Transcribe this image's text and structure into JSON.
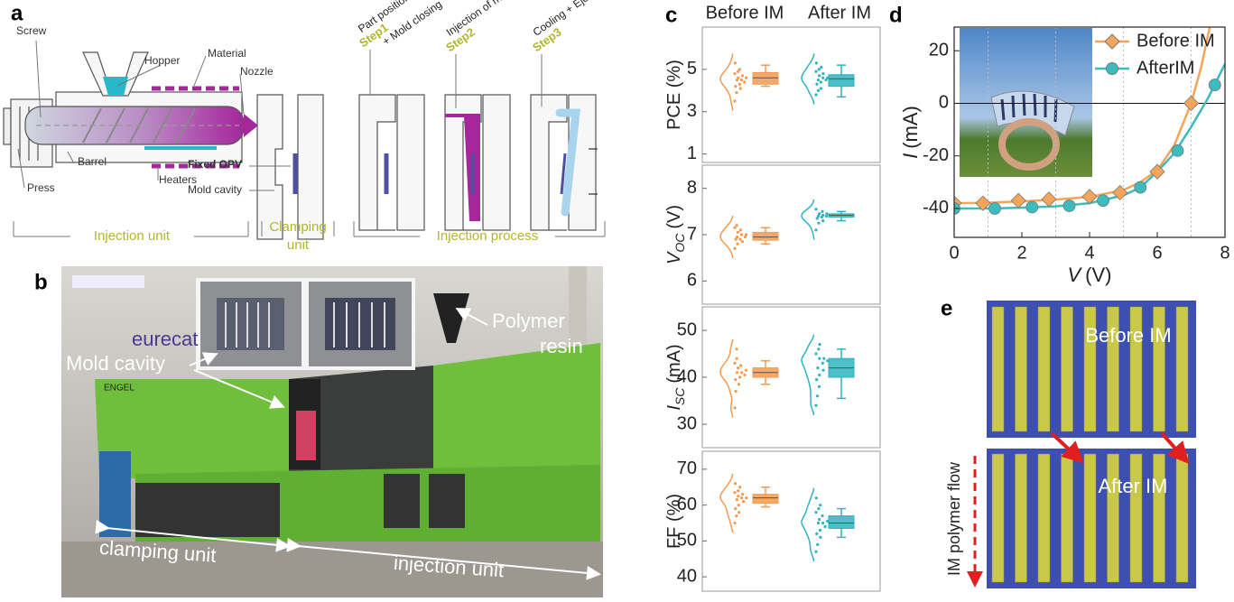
{
  "panel_labels": [
    "a",
    "b",
    "c",
    "d",
    "e"
  ],
  "panel_a": {
    "labels": {
      "screw": "Screw",
      "hopper": "Hopper",
      "material": "Material",
      "nozzle": "Nozzle",
      "press": "Press",
      "barrel": "Barrel",
      "heaters": "Heaters",
      "fixed_opv": "Fixed OPV",
      "mold_cavity": "Mold cavity"
    },
    "steps": [
      {
        "step": "Step1",
        "text": [
          "Part positioning",
          "+ Mold closing"
        ]
      },
      {
        "step": "Step2",
        "text": [
          "Injection of material"
        ]
      },
      {
        "step": "Step3",
        "text": [
          "Cooling + Ejection"
        ]
      }
    ],
    "sections": {
      "injection_unit": "Injection unit",
      "clamping_unit": [
        "Clamping",
        "unit"
      ],
      "injection_process": "Injection process"
    }
  },
  "panel_b": {
    "brand": "eurecat",
    "machine": "ENGEL",
    "polymer_resin": [
      "Polymer",
      "resin"
    ],
    "mold_cavity": "Mold cavity",
    "clamping_unit": "clamping unit",
    "injection_unit": "injection unit"
  },
  "panel_c": {
    "categories": [
      "Before IM",
      "After IM"
    ],
    "colors": [
      "#f39a4f",
      "#2fb3bf"
    ]
  },
  "panel_e": {
    "before": "Before IM",
    "after": "After IM",
    "flow": "IM polymer flow"
  },
  "chart_data": [
    {
      "type": "box",
      "ylabel": {
        "text": "PCE (%)"
      },
      "ylim": [
        0.6,
        7
      ],
      "yticks": [
        1,
        3,
        5
      ],
      "boxes": [
        {
          "whisker_low": 4.2,
          "q1": 4.3,
          "median": 4.6,
          "q3": 4.85,
          "whisker_high": 5.2,
          "points": [
            3.5,
            3.9,
            4.1,
            4.2,
            4.3,
            4.4,
            4.5,
            4.5,
            4.6,
            4.6,
            4.7,
            4.8,
            4.9,
            5.0,
            5.3
          ]
        },
        {
          "whisker_low": 3.7,
          "q1": 4.2,
          "median": 4.55,
          "q3": 4.75,
          "whisker_high": 5.2,
          "points": [
            3.8,
            4.0,
            4.1,
            4.3,
            4.4,
            4.5,
            4.5,
            4.6,
            4.6,
            4.7,
            4.8,
            4.9,
            5.0,
            5.1,
            5.3
          ]
        }
      ]
    },
    {
      "type": "box",
      "ylabel": {
        "symbol": "V",
        "sub": "OC",
        "unit": "(V)"
      },
      "ylim": [
        5.5,
        8.5
      ],
      "yticks": [
        6,
        7,
        8
      ],
      "boxes": [
        {
          "whisker_low": 6.8,
          "q1": 6.88,
          "median": 6.95,
          "q3": 7.05,
          "whisker_high": 7.15,
          "points": [
            6.7,
            6.8,
            6.85,
            6.9,
            6.9,
            6.95,
            6.95,
            7.0,
            7.0,
            7.05,
            7.1,
            7.15,
            7.2
          ]
        },
        {
          "whisker_low": 7.3,
          "q1": 7.38,
          "median": 7.42,
          "q3": 7.45,
          "whisker_high": 7.5,
          "points": [
            7.1,
            7.25,
            7.3,
            7.35,
            7.38,
            7.4,
            7.4,
            7.42,
            7.45,
            7.45,
            7.5,
            7.55
          ]
        }
      ]
    },
    {
      "type": "box",
      "ylabel": {
        "symbol": "I",
        "sub": "SC",
        "unit": "(mA)"
      },
      "ylim": [
        25,
        55
      ],
      "yticks": [
        30,
        40,
        50
      ],
      "boxes": [
        {
          "whisker_low": 38.5,
          "q1": 40,
          "median": 41,
          "q3": 42,
          "whisker_high": 43.5,
          "points": [
            33.5,
            37,
            38.5,
            39.5,
            40,
            40.5,
            41,
            41,
            41.5,
            42,
            42.5,
            43,
            44,
            46
          ]
        },
        {
          "whisker_low": 35.5,
          "q1": 40,
          "median": 42,
          "q3": 44,
          "whisker_high": 46,
          "points": [
            34,
            36,
            38,
            39.5,
            40.5,
            41.5,
            42,
            43,
            43.5,
            44,
            44,
            45,
            46,
            47
          ]
        }
      ]
    },
    {
      "type": "box",
      "ylabel": {
        "text": "FF (%)"
      },
      "ylim": [
        36,
        75
      ],
      "yticks": [
        40,
        50,
        60,
        70
      ],
      "boxes": [
        {
          "whisker_low": 59.5,
          "q1": 60.5,
          "median": 62,
          "q3": 63,
          "whisker_high": 65,
          "points": [
            55,
            57,
            58,
            59,
            60,
            61,
            61.5,
            62,
            62,
            62.5,
            63,
            63.5,
            64,
            65,
            66
          ]
        },
        {
          "whisker_low": 51,
          "q1": 53.5,
          "median": 55,
          "q3": 57,
          "whisker_high": 59,
          "points": [
            47,
            49,
            51,
            52,
            53,
            54,
            55,
            55,
            55.5,
            56,
            57,
            58,
            59,
            60,
            62
          ]
        }
      ]
    },
    {
      "type": "line",
      "xlabel": {
        "symbol": "V",
        "unit": "(V)"
      },
      "ylabel": {
        "symbol": "I",
        "unit": "(mA)"
      },
      "xlim": [
        0,
        8
      ],
      "ylim": [
        -51,
        29
      ],
      "xticks": [
        0,
        2,
        4,
        6,
        8
      ],
      "yticks": [
        20,
        0,
        -20,
        -40
      ],
      "minor_xticks": [
        1,
        3,
        5,
        7
      ],
      "zero_line": 0,
      "series": [
        {
          "name": "Before IM",
          "color": "#f5a55a",
          "marker": "diamond",
          "x": [
            0,
            0.85,
            1.9,
            2.8,
            4.0,
            4.9,
            6.0,
            7.0
          ],
          "values": [
            -38,
            -38,
            -37,
            -36.5,
            -35.5,
            -34,
            -26,
            0
          ],
          "curve_x": [
            0,
            1,
            2,
            3,
            4,
            5,
            5.5,
            6,
            6.5,
            7,
            7.3,
            7.55
          ],
          "curve_values": [
            -38,
            -37.8,
            -37.3,
            -36.6,
            -35.6,
            -33,
            -30,
            -25.5,
            -16,
            0,
            14,
            29
          ]
        },
        {
          "name": "AfterIM",
          "color": "#3cbcbc",
          "marker": "circle",
          "x": [
            0,
            1.2,
            2.3,
            3.4,
            4.4,
            5.5,
            6.6,
            7.7
          ],
          "values": [
            -40,
            -40,
            -39.5,
            -39,
            -37,
            -32,
            -18,
            7
          ],
          "curve_x": [
            0,
            1,
            2,
            3,
            4,
            5,
            5.5,
            6,
            6.5,
            7,
            7.5,
            8
          ],
          "curve_values": [
            -40,
            -40,
            -39.7,
            -39.2,
            -38,
            -35,
            -32,
            -26,
            -19,
            -9,
            2,
            15
          ]
        }
      ]
    }
  ]
}
